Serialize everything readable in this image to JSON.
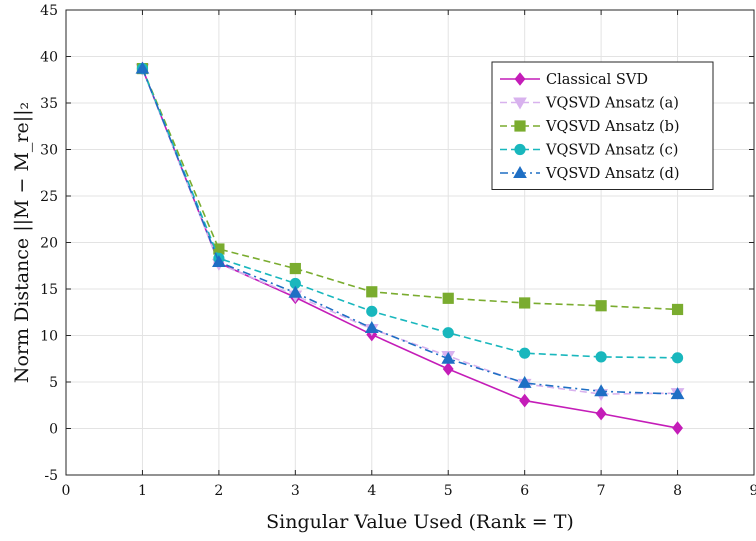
{
  "chart_data": {
    "type": "line",
    "title": "",
    "xlabel": "Singular Value Used (Rank = T)",
    "ylabel": "Norm Distance ||M − M_re||₂",
    "xlim": [
      0,
      9
    ],
    "ylim": [
      -5,
      45
    ],
    "xticks": [
      0,
      1,
      2,
      3,
      4,
      5,
      6,
      7,
      8,
      9
    ],
    "yticks": [
      -5,
      0,
      5,
      10,
      15,
      20,
      25,
      30,
      35,
      40,
      45
    ],
    "xtick_labels": [
      "0",
      "1",
      "2",
      "3",
      "4",
      "5",
      "6",
      "7",
      "8",
      "9"
    ],
    "ytick_labels": [
      "-5",
      "0",
      "5",
      "10",
      "15",
      "20",
      "25",
      "30",
      "35",
      "40",
      "45"
    ],
    "grid": true,
    "legend_position": "top-right",
    "x": [
      1,
      2,
      3,
      4,
      5,
      6,
      7,
      8
    ],
    "series": [
      {
        "name": "Classical SVD",
        "values": [
          38.7,
          17.8,
          14.1,
          10.1,
          6.4,
          3.0,
          1.6,
          0.05
        ],
        "color": "#c41db8",
        "dash": "solid",
        "marker": "diamond"
      },
      {
        "name": "VQSVD Ansatz (a)",
        "values": [
          38.7,
          17.7,
          14.3,
          10.7,
          7.8,
          4.8,
          3.7,
          3.8
        ],
        "color": "#d8b2ee",
        "dash": "dashed",
        "marker": "triangle-down"
      },
      {
        "name": "VQSVD Ansatz (b)",
        "values": [
          38.7,
          19.3,
          17.2,
          14.7,
          14.0,
          13.5,
          13.2,
          12.8
        ],
        "color": "#7aac2f",
        "dash": "dashed",
        "marker": "square"
      },
      {
        "name": "VQSVD Ansatz (c)",
        "values": [
          38.7,
          18.3,
          15.6,
          12.6,
          10.3,
          8.1,
          7.7,
          7.6
        ],
        "color": "#19b7bd",
        "dash": "dashed",
        "marker": "circle"
      },
      {
        "name": "VQSVD Ansatz (d)",
        "values": [
          38.7,
          17.9,
          14.6,
          10.8,
          7.5,
          4.9,
          4.0,
          3.7
        ],
        "color": "#1f6fc4",
        "dash": "dashdot",
        "marker": "triangle-up"
      }
    ]
  }
}
